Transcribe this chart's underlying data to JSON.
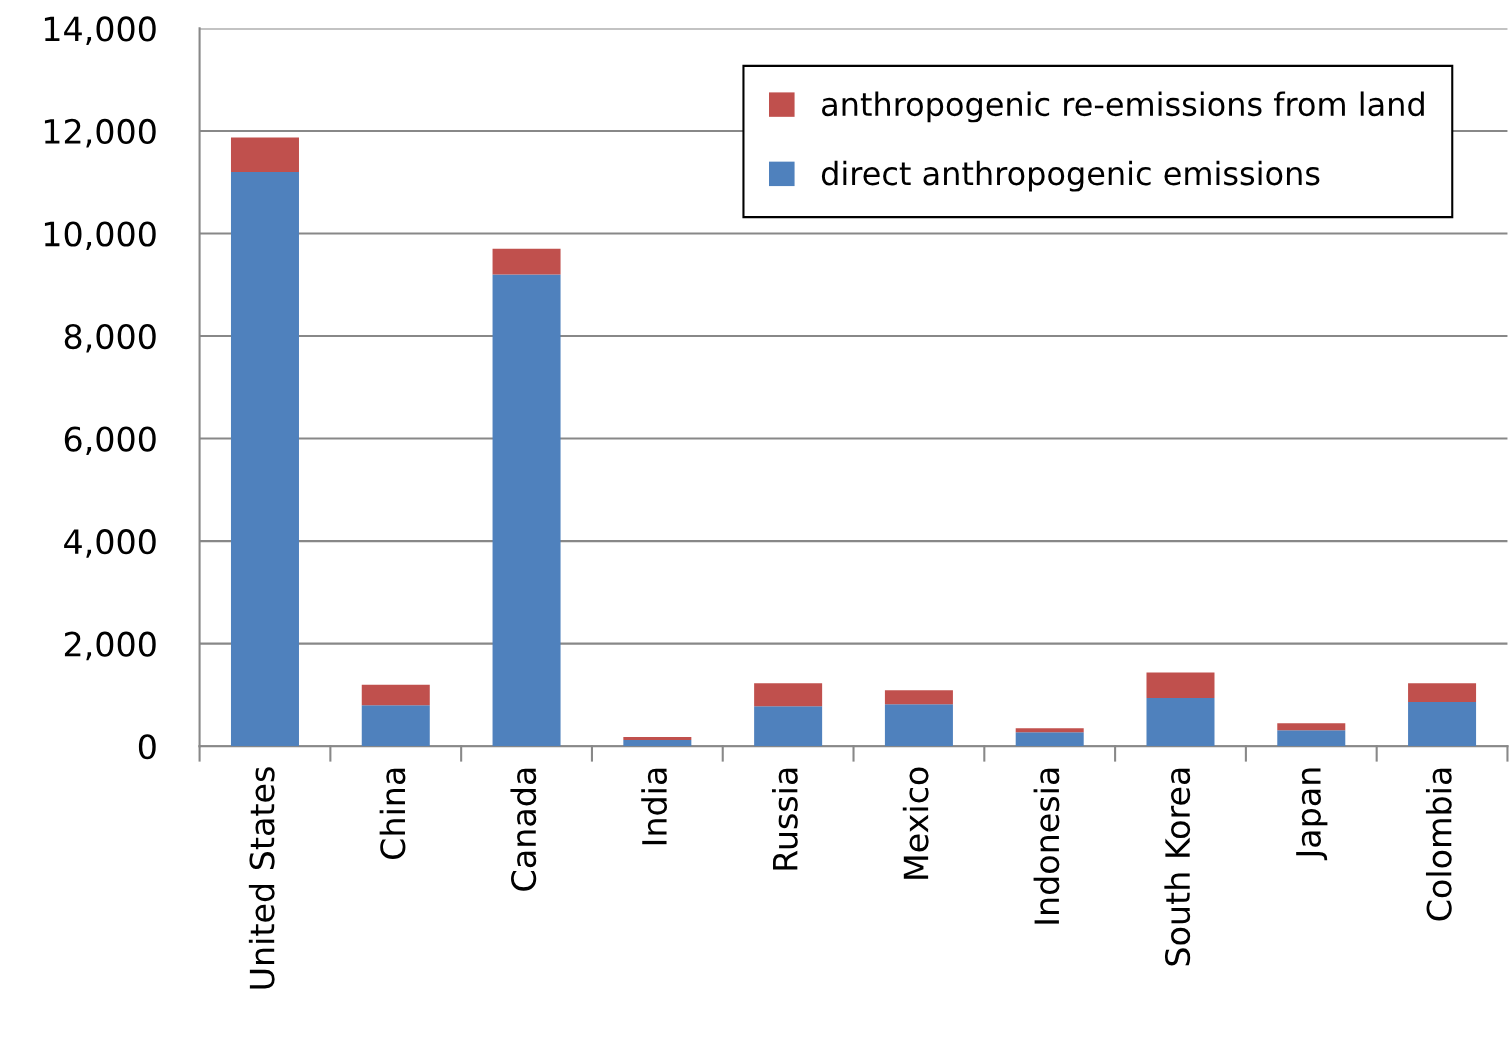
{
  "chart_data": {
    "type": "bar",
    "stacked": true,
    "categories": [
      "United States",
      "China",
      "Canada",
      "India",
      "Russia",
      "Mexico",
      "Indonesia",
      "South Korea",
      "Japan",
      "Colombia"
    ],
    "series": [
      {
        "name": "direct anthropogenic emissions",
        "color": "#4f81bd",
        "values": [
          11200,
          800,
          9200,
          120,
          780,
          820,
          270,
          940,
          310,
          860
        ]
      },
      {
        "name": "anthropogenic re-emissions from land",
        "color": "#c0504d",
        "values": [
          670,
          400,
          500,
          60,
          450,
          270,
          80,
          500,
          140,
          370
        ]
      }
    ],
    "ylim": [
      0,
      14000
    ],
    "yticks": [
      {
        "value": 0,
        "label": "0"
      },
      {
        "value": 2000,
        "label": "2,000"
      },
      {
        "value": 4000,
        "label": "4,000"
      },
      {
        "value": 6000,
        "label": "6,000"
      },
      {
        "value": 8000,
        "label": "8,000"
      },
      {
        "value": 10000,
        "label": "10,000"
      },
      {
        "value": 12000,
        "label": "12,000"
      },
      {
        "value": 14000,
        "label": "14,000"
      }
    ],
    "grid": "y",
    "legend": "top right"
  }
}
